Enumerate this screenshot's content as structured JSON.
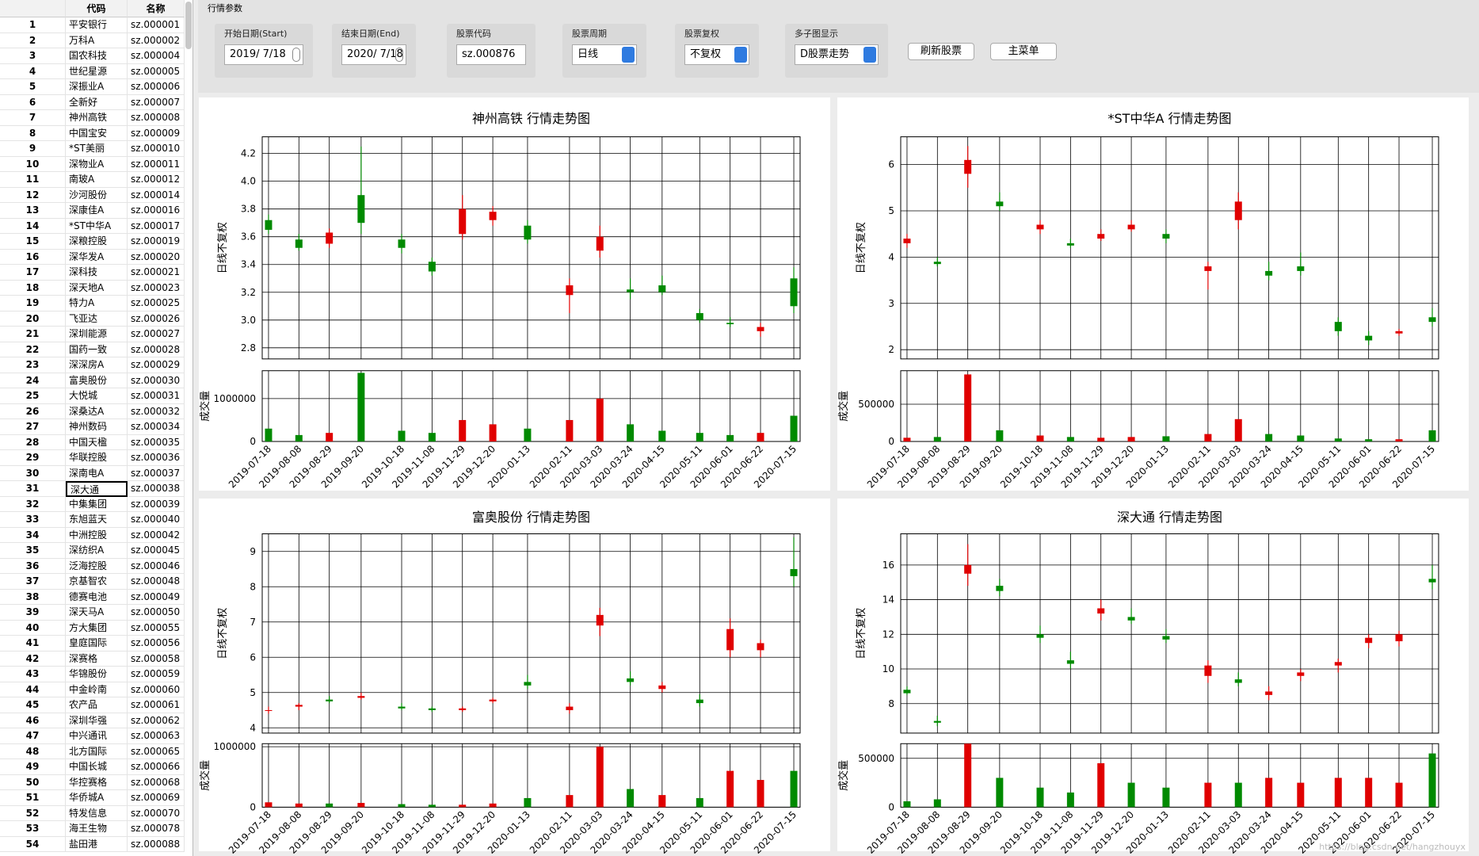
{
  "table": {
    "headers": [
      "代码",
      "名称"
    ],
    "rows": [
      [
        1,
        "平安银行",
        "sz.000001"
      ],
      [
        2,
        "万科A",
        "sz.000002"
      ],
      [
        3,
        "国农科技",
        "sz.000004"
      ],
      [
        4,
        "世纪星源",
        "sz.000005"
      ],
      [
        5,
        "深振业A",
        "sz.000006"
      ],
      [
        6,
        "全新好",
        "sz.000007"
      ],
      [
        7,
        "神州高铁",
        "sz.000008"
      ],
      [
        8,
        "中国宝安",
        "sz.000009"
      ],
      [
        9,
        "*ST美丽",
        "sz.000010"
      ],
      [
        10,
        "深物业A",
        "sz.000011"
      ],
      [
        11,
        "南玻A",
        "sz.000012"
      ],
      [
        12,
        "沙河股份",
        "sz.000014"
      ],
      [
        13,
        "深康佳A",
        "sz.000016"
      ],
      [
        14,
        "*ST中华A",
        "sz.000017"
      ],
      [
        15,
        "深粮控股",
        "sz.000019"
      ],
      [
        16,
        "深华发A",
        "sz.000020"
      ],
      [
        17,
        "深科技",
        "sz.000021"
      ],
      [
        18,
        "深天地A",
        "sz.000023"
      ],
      [
        19,
        "特力A",
        "sz.000025"
      ],
      [
        20,
        "飞亚达",
        "sz.000026"
      ],
      [
        21,
        "深圳能源",
        "sz.000027"
      ],
      [
        22,
        "国药一致",
        "sz.000028"
      ],
      [
        23,
        "深深房A",
        "sz.000029"
      ],
      [
        24,
        "富奥股份",
        "sz.000030"
      ],
      [
        25,
        "大悦城",
        "sz.000031"
      ],
      [
        26,
        "深桑达A",
        "sz.000032"
      ],
      [
        27,
        "神州数码",
        "sz.000034"
      ],
      [
        28,
        "中国天楹",
        "sz.000035"
      ],
      [
        29,
        "华联控股",
        "sz.000036"
      ],
      [
        30,
        "深南电A",
        "sz.000037"
      ],
      [
        31,
        "深大通",
        "sz.000038"
      ],
      [
        32,
        "中集集团",
        "sz.000039"
      ],
      [
        33,
        "东旭蓝天",
        "sz.000040"
      ],
      [
        34,
        "中洲控股",
        "sz.000042"
      ],
      [
        35,
        "深纺织A",
        "sz.000045"
      ],
      [
        36,
        "泛海控股",
        "sz.000046"
      ],
      [
        37,
        "京基智农",
        "sz.000048"
      ],
      [
        38,
        "德赛电池",
        "sz.000049"
      ],
      [
        39,
        "深天马A",
        "sz.000050"
      ],
      [
        40,
        "方大集团",
        "sz.000055"
      ],
      [
        41,
        "皇庭国际",
        "sz.000056"
      ],
      [
        42,
        "深赛格",
        "sz.000058"
      ],
      [
        43,
        "华锦股份",
        "sz.000059"
      ],
      [
        44,
        "中金岭南",
        "sz.000060"
      ],
      [
        45,
        "农产品",
        "sz.000061"
      ],
      [
        46,
        "深圳华强",
        "sz.000062"
      ],
      [
        47,
        "中兴通讯",
        "sz.000063"
      ],
      [
        48,
        "北方国际",
        "sz.000065"
      ],
      [
        49,
        "中国长城",
        "sz.000066"
      ],
      [
        50,
        "华控赛格",
        "sz.000068"
      ],
      [
        51,
        "华侨城A",
        "sz.000069"
      ],
      [
        52,
        "特发信息",
        "sz.000070"
      ],
      [
        53,
        "海王生物",
        "sz.000078"
      ],
      [
        54,
        "盐田港",
        "sz.000088"
      ]
    ],
    "selected_row": 30
  },
  "params": {
    "title": "行情参数",
    "fields": [
      {
        "label": "开始日期(Start)",
        "value": "2019/ 7/18",
        "kind": "date"
      },
      {
        "label": "结束日期(End)",
        "value": "2020/ 7/18",
        "kind": "date"
      },
      {
        "label": "股票代码",
        "value": "sz.000876",
        "kind": "text"
      },
      {
        "label": "股票周期",
        "value": "日线",
        "kind": "select"
      },
      {
        "label": "股票复权",
        "value": "不复权",
        "kind": "select"
      },
      {
        "label": "多子图显示",
        "value": "D股票走势",
        "kind": "select"
      }
    ],
    "buttons": [
      "刷新股票",
      "主菜单"
    ]
  },
  "watermark": "https://blog.csdn.net/hangzhouyx",
  "chart_data": [
    {
      "type": "candlestick",
      "title": "神州高铁  行情走势图",
      "ylabel": "日线不复权",
      "volume_label": "成交量",
      "x": [
        "2019-07-18",
        "2019-08-08",
        "2019-08-29",
        "2019-09-20",
        "2019-10-18",
        "2019-11-08",
        "2019-11-29",
        "2019-12-20",
        "2020-01-13",
        "2020-02-11",
        "2020-03-03",
        "2020-03-24",
        "2020-04-15",
        "2020-05-11",
        "2020-06-01",
        "2020-06-22",
        "2020-07-15"
      ],
      "open": [
        3.72,
        3.58,
        3.55,
        3.9,
        3.58,
        3.42,
        3.62,
        3.72,
        3.68,
        3.18,
        3.5,
        3.22,
        3.25,
        3.05,
        2.98,
        2.92,
        3.3
      ],
      "high": [
        3.76,
        3.62,
        3.66,
        4.25,
        3.62,
        3.45,
        3.9,
        3.82,
        3.72,
        3.3,
        3.68,
        3.3,
        3.32,
        3.08,
        3.02,
        2.98,
        3.38
      ],
      "low": [
        3.62,
        3.5,
        3.52,
        3.62,
        3.48,
        3.32,
        3.58,
        3.68,
        3.55,
        3.05,
        3.45,
        3.15,
        3.18,
        2.98,
        2.95,
        2.88,
        3.05
      ],
      "close": [
        3.65,
        3.52,
        3.63,
        3.7,
        3.52,
        3.35,
        3.8,
        3.78,
        3.58,
        3.25,
        3.6,
        3.2,
        3.2,
        3.0,
        2.97,
        2.95,
        3.1
      ],
      "volume": [
        300000,
        150000,
        200000,
        1600000,
        250000,
        200000,
        500000,
        400000,
        300000,
        500000,
        1000000,
        400000,
        250000,
        200000,
        150000,
        200000,
        600000
      ],
      "ylim": [
        2.72,
        4.32
      ],
      "yticks": [
        2.8,
        {
          "value": 3,
          "label": "3.0"
        },
        3.2,
        3.4,
        3.6,
        3.8,
        {
          "value": 4,
          "label": "4.0"
        },
        4.2
      ],
      "volume_ylim": [
        0,
        1650000
      ],
      "volume_yticks": [
        0,
        1000000
      ],
      "up_color": "#e00000",
      "down_color": "#008a00",
      "grid": true
    },
    {
      "type": "candlestick",
      "title": "*ST中华A  行情走势图",
      "ylabel": "日线不复权",
      "volume_label": "成交量",
      "x": [
        "2019-07-18",
        "2019-08-08",
        "2019-08-29",
        "2019-09-20",
        "2019-10-18",
        "2019-11-08",
        "2019-11-29",
        "2019-12-20",
        "2020-01-13",
        "2020-02-11",
        "2020-03-03",
        "2020-03-24",
        "2020-04-15",
        "2020-05-11",
        "2020-06-01",
        "2020-06-22",
        "2020-07-15"
      ],
      "open": [
        4.3,
        3.9,
        5.8,
        5.2,
        4.6,
        4.3,
        4.4,
        4.6,
        4.5,
        3.7,
        4.8,
        3.7,
        3.8,
        2.6,
        2.3,
        2.35,
        2.7
      ],
      "high": [
        4.5,
        4.0,
        6.4,
        5.4,
        4.8,
        4.4,
        4.6,
        4.8,
        4.6,
        3.9,
        5.4,
        3.9,
        4.1,
        2.7,
        2.4,
        2.45,
        2.9
      ],
      "low": [
        4.2,
        3.8,
        5.5,
        5.0,
        4.5,
        4.2,
        4.35,
        4.55,
        4.3,
        3.3,
        4.6,
        3.5,
        3.6,
        2.3,
        2.1,
        2.3,
        2.5
      ],
      "close": [
        4.4,
        3.85,
        6.1,
        5.1,
        4.7,
        4.25,
        4.5,
        4.7,
        4.4,
        3.8,
        5.2,
        3.6,
        3.7,
        2.4,
        2.2,
        2.4,
        2.6
      ],
      "volume": [
        50000,
        60000,
        900000,
        150000,
        80000,
        60000,
        50000,
        60000,
        70000,
        100000,
        300000,
        100000,
        80000,
        40000,
        30000,
        30000,
        150000
      ],
      "ylim": [
        1.8,
        6.6
      ],
      "yticks": [
        2,
        3,
        4,
        5,
        6
      ],
      "volume_ylim": [
        0,
        950000
      ],
      "volume_yticks": [
        0,
        500000
      ],
      "up_color": "#e00000",
      "down_color": "#008a00",
      "grid": true
    },
    {
      "type": "candlestick",
      "title": "富奥股份  行情走势图",
      "ylabel": "日线不复权",
      "volume_label": "成交量",
      "x": [
        "2019-07-18",
        "2019-08-08",
        "2019-08-29",
        "2019-09-20",
        "2019-10-18",
        "2019-11-08",
        "2019-11-29",
        "2019-12-20",
        "2020-01-13",
        "2020-02-11",
        "2020-03-03",
        "2020-03-24",
        "2020-04-15",
        "2020-05-11",
        "2020-06-01",
        "2020-06-22",
        "2020-07-15"
      ],
      "open": [
        4.5,
        4.6,
        4.8,
        4.85,
        4.6,
        4.55,
        4.5,
        4.75,
        5.3,
        4.5,
        6.9,
        5.4,
        5.1,
        4.8,
        6.2,
        6.2,
        8.5
      ],
      "high": [
        4.6,
        4.7,
        4.9,
        5.0,
        4.7,
        4.6,
        4.6,
        4.85,
        5.5,
        4.7,
        7.4,
        5.6,
        5.3,
        4.95,
        7.1,
        6.5,
        9.4
      ],
      "low": [
        4.4,
        4.5,
        4.7,
        4.8,
        4.5,
        4.45,
        4.45,
        4.7,
        5.1,
        4.4,
        6.6,
        5.2,
        5.0,
        4.6,
        6.0,
        6.0,
        8.0
      ],
      "close": [
        4.5,
        4.65,
        4.75,
        4.9,
        4.55,
        4.5,
        4.55,
        4.8,
        5.2,
        4.6,
        7.2,
        5.3,
        5.2,
        4.7,
        6.8,
        6.4,
        8.3
      ],
      "volume": [
        80000,
        60000,
        60000,
        70000,
        50000,
        40000,
        40000,
        60000,
        150000,
        200000,
        1000000,
        300000,
        200000,
        150000,
        600000,
        450000,
        600000
      ],
      "ylim": [
        3.85,
        9.5
      ],
      "yticks": [
        4,
        5,
        6,
        7,
        8,
        9
      ],
      "volume_ylim": [
        0,
        1050000
      ],
      "volume_yticks": [
        0,
        1000000
      ],
      "up_color": "#e00000",
      "down_color": "#008a00",
      "grid": true
    },
    {
      "type": "candlestick",
      "title": "深大通  行情走势图",
      "ylabel": "日线不复权",
      "volume_label": "成交量",
      "x": [
        "2019-07-18",
        "2019-08-08",
        "2019-08-29",
        "2019-09-20",
        "2019-10-18",
        "2019-11-08",
        "2019-11-29",
        "2019-12-20",
        "2020-01-13",
        "2020-02-11",
        "2020-03-03",
        "2020-03-24",
        "2020-04-15",
        "2020-05-11",
        "2020-06-01",
        "2020-06-22",
        "2020-07-15"
      ],
      "open": [
        8.8,
        7.0,
        15.5,
        14.8,
        12.0,
        10.5,
        13.2,
        13.0,
        11.9,
        9.6,
        9.4,
        8.5,
        9.6,
        10.2,
        11.5,
        11.6,
        15.2
      ],
      "high": [
        9.0,
        7.3,
        17.2,
        15.2,
        12.5,
        11.0,
        14.0,
        13.5,
        12.3,
        10.5,
        9.8,
        9.0,
        10.0,
        10.6,
        12.0,
        12.2,
        16.0
      ],
      "low": [
        8.5,
        6.7,
        14.8,
        14.2,
        11.5,
        10.0,
        12.8,
        12.6,
        11.5,
        9.2,
        9.0,
        8.2,
        9.3,
        9.8,
        11.2,
        11.3,
        14.6
      ],
      "close": [
        8.6,
        6.9,
        16.0,
        14.5,
        11.8,
        10.3,
        13.5,
        12.8,
        11.7,
        10.2,
        9.2,
        8.7,
        9.8,
        10.4,
        11.8,
        12.0,
        15.0
      ],
      "volume": [
        60000,
        80000,
        650000,
        300000,
        200000,
        150000,
        450000,
        250000,
        200000,
        250000,
        250000,
        300000,
        250000,
        300000,
        300000,
        250000,
        550000
      ],
      "ylim": [
        6.3,
        17.8
      ],
      "yticks": [
        8,
        10,
        12,
        14,
        16
      ],
      "volume_ylim": [
        0,
        650000
      ],
      "volume_yticks": [
        0,
        500000
      ],
      "up_color": "#e00000",
      "down_color": "#008a00",
      "grid": true
    }
  ]
}
